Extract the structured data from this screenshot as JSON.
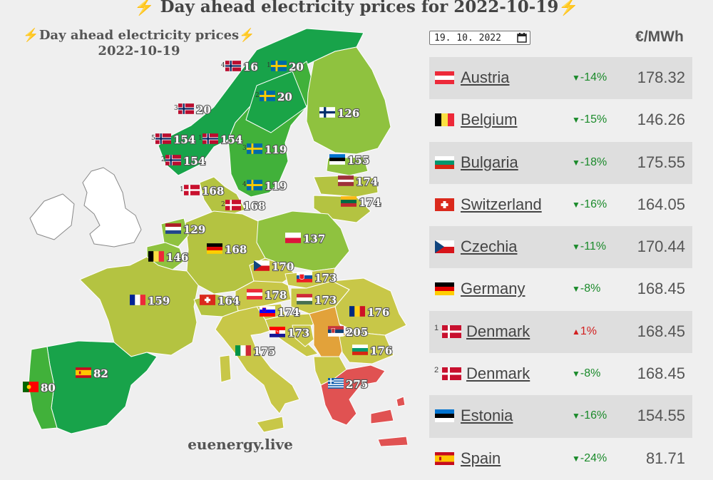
{
  "header": {
    "title": "⚡ Day ahead electricity prices for 2022-10-19⚡"
  },
  "map": {
    "title_line1": "⚡Day ahead electricity prices⚡",
    "title_line2": "2022-10-19",
    "watermark": "euenergy.live",
    "colors": {
      "land_default": "#b7c84a",
      "green_dark": "#18a34a",
      "green_mid": "#41b13a",
      "green_light": "#8fc23f",
      "olive": "#b4c341",
      "yellow_olive": "#c8c748",
      "orange": "#e2a23a",
      "red": "#e05252",
      "non_market": "#ffffff"
    },
    "labels": [
      {
        "flag": "no",
        "zone": "4",
        "value": "16"
      },
      {
        "flag": "se",
        "zone": "1",
        "value": "20"
      },
      {
        "flag": "se",
        "zone": "2",
        "value": "20"
      },
      {
        "flag": "no",
        "zone": "3",
        "value": "20"
      },
      {
        "flag": "fi",
        "zone": "",
        "value": "126"
      },
      {
        "flag": "no",
        "zone": "5",
        "value": "154"
      },
      {
        "flag": "no",
        "zone": "1",
        "value": "154"
      },
      {
        "flag": "se",
        "zone": "3",
        "value": "119"
      },
      {
        "flag": "no",
        "zone": "2",
        "value": "154"
      },
      {
        "flag": "ee",
        "zone": "",
        "value": "155"
      },
      {
        "flag": "lv",
        "zone": "",
        "value": "174"
      },
      {
        "flag": "dk",
        "zone": "1",
        "value": "168"
      },
      {
        "flag": "se",
        "zone": "4",
        "value": "119"
      },
      {
        "flag": "lt",
        "zone": "",
        "value": "174"
      },
      {
        "flag": "dk",
        "zone": "2",
        "value": "168"
      },
      {
        "flag": "nl",
        "zone": "",
        "value": "129"
      },
      {
        "flag": "pl",
        "zone": "",
        "value": "137"
      },
      {
        "flag": "de",
        "zone": "",
        "value": "168"
      },
      {
        "flag": "be",
        "zone": "",
        "value": "146"
      },
      {
        "flag": "cz",
        "zone": "",
        "value": "170"
      },
      {
        "flag": "sk",
        "zone": "",
        "value": "173"
      },
      {
        "flag": "fr",
        "zone": "",
        "value": "159"
      },
      {
        "flag": "at",
        "zone": "",
        "value": "178"
      },
      {
        "flag": "hu",
        "zone": "",
        "value": "173"
      },
      {
        "flag": "ch",
        "zone": "",
        "value": "164"
      },
      {
        "flag": "si",
        "zone": "",
        "value": "174"
      },
      {
        "flag": "ro",
        "zone": "",
        "value": "176"
      },
      {
        "flag": "hr",
        "zone": "",
        "value": "173"
      },
      {
        "flag": "rs",
        "zone": "",
        "value": "205"
      },
      {
        "flag": "it",
        "zone": "",
        "value": "175"
      },
      {
        "flag": "bg",
        "zone": "",
        "value": "176"
      },
      {
        "flag": "es",
        "zone": "",
        "value": "82"
      },
      {
        "flag": "gr",
        "zone": "",
        "value": "275"
      },
      {
        "flag": "pt",
        "zone": "",
        "value": "80"
      }
    ]
  },
  "controls": {
    "date_value": "19. 10. 2022",
    "calendar_icon": "calendar-icon",
    "unit_header": "€/MWh"
  },
  "table": {
    "rows": [
      {
        "flag": "at",
        "zone": "",
        "country": "Austria",
        "direction": "down",
        "arrow": "▼",
        "change": "-14%",
        "price": "178.32"
      },
      {
        "flag": "be",
        "zone": "",
        "country": "Belgium",
        "direction": "down",
        "arrow": "▼",
        "change": "-15%",
        "price": "146.26"
      },
      {
        "flag": "bg",
        "zone": "",
        "country": "Bulgaria",
        "direction": "down",
        "arrow": "▼",
        "change": "-18%",
        "price": "175.55"
      },
      {
        "flag": "ch",
        "zone": "",
        "country": "Switzerland",
        "direction": "down",
        "arrow": "▼",
        "change": "-16%",
        "price": "164.05"
      },
      {
        "flag": "cz",
        "zone": "",
        "country": "Czechia",
        "direction": "down",
        "arrow": "▼",
        "change": "-11%",
        "price": "170.44"
      },
      {
        "flag": "de",
        "zone": "",
        "country": "Germany",
        "direction": "down",
        "arrow": "▼",
        "change": "-8%",
        "price": "168.45"
      },
      {
        "flag": "dk",
        "zone": "1",
        "country": "Denmark",
        "direction": "up",
        "arrow": "▲",
        "change": "1%",
        "price": "168.45"
      },
      {
        "flag": "dk",
        "zone": "2",
        "country": "Denmark",
        "direction": "down",
        "arrow": "▼",
        "change": "-8%",
        "price": "168.45"
      },
      {
        "flag": "ee",
        "zone": "",
        "country": "Estonia",
        "direction": "down",
        "arrow": "▼",
        "change": "-16%",
        "price": "154.55"
      },
      {
        "flag": "es",
        "zone": "",
        "country": "Spain",
        "direction": "down",
        "arrow": "▼",
        "change": "-24%",
        "price": "81.71"
      }
    ]
  }
}
